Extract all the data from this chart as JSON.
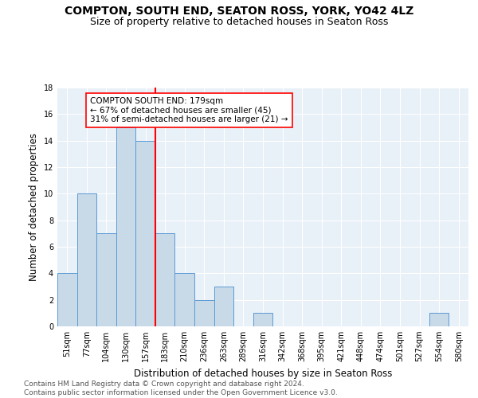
{
  "title": "COMPTON, SOUTH END, SEATON ROSS, YORK, YO42 4LZ",
  "subtitle": "Size of property relative to detached houses in Seaton Ross",
  "xlabel": "Distribution of detached houses by size in Seaton Ross",
  "ylabel": "Number of detached properties",
  "bin_labels": [
    "51sqm",
    "77sqm",
    "104sqm",
    "130sqm",
    "157sqm",
    "183sqm",
    "210sqm",
    "236sqm",
    "263sqm",
    "289sqm",
    "316sqm",
    "342sqm",
    "368sqm",
    "395sqm",
    "421sqm",
    "448sqm",
    "474sqm",
    "501sqm",
    "527sqm",
    "554sqm",
    "580sqm"
  ],
  "bar_heights": [
    4,
    10,
    7,
    15,
    14,
    7,
    4,
    2,
    3,
    0,
    1,
    0,
    0,
    0,
    0,
    0,
    0,
    0,
    0,
    1,
    0
  ],
  "bar_color": "#c8d9e8",
  "bar_edge_color": "#5b9bd5",
  "vline_x": 5,
  "vline_color": "red",
  "annotation_text": "COMPTON SOUTH END: 179sqm\n← 67% of detached houses are smaller (45)\n31% of semi-detached houses are larger (21) →",
  "annotation_box_color": "white",
  "annotation_box_edge_color": "red",
  "ylim": [
    0,
    18
  ],
  "yticks": [
    0,
    2,
    4,
    6,
    8,
    10,
    12,
    14,
    16,
    18
  ],
  "background_color": "#e8f0f8",
  "footer_text": "Contains HM Land Registry data © Crown copyright and database right 2024.\nContains public sector information licensed under the Open Government Licence v3.0.",
  "title_fontsize": 10,
  "subtitle_fontsize": 9,
  "xlabel_fontsize": 8.5,
  "ylabel_fontsize": 8.5,
  "tick_fontsize": 7,
  "annotation_fontsize": 7.5,
  "footer_fontsize": 6.5
}
